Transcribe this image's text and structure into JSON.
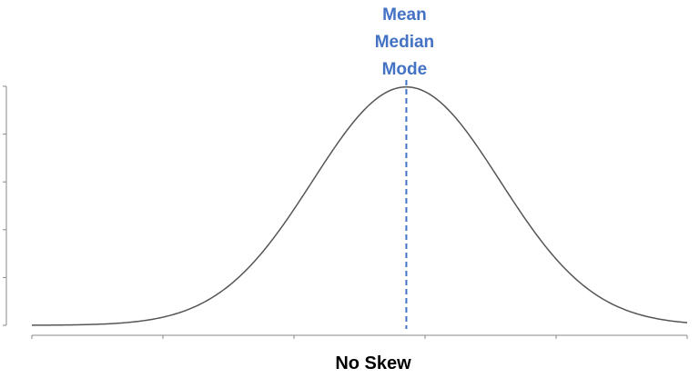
{
  "chart_data": {
    "type": "line",
    "title": "No Skew",
    "xlabel": "",
    "ylabel": "",
    "xlim": [
      -3.5,
      3.5
    ],
    "ylim": [
      0,
      0.4
    ],
    "grid": false,
    "legend": "none",
    "x_tick_count": 6,
    "y_tick_count": 6,
    "series": [
      {
        "distribution": "normal",
        "mean": 0.5,
        "sd": 1,
        "color": "#555555"
      }
    ],
    "annotations": {
      "labels": [
        "Mean",
        "Median",
        "Mode"
      ],
      "x": 0.5,
      "line_style": "dashed",
      "color": "#4472C4"
    }
  }
}
